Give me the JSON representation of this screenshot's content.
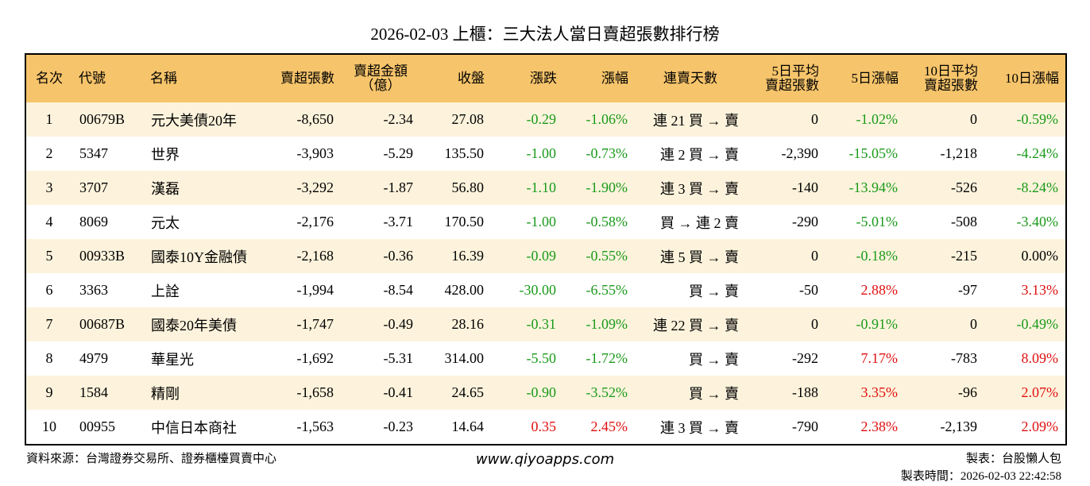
{
  "title": "2026-02-03 上櫃：三大法人當日賣超張數排行榜",
  "table": {
    "header": [
      "名次",
      "代號",
      "名稱",
      "賣超張數",
      "賣超金額\n（億）",
      "收盤",
      "漲跌",
      "漲幅",
      "連賣天數",
      "5日平均\n賣超張數",
      "5日漲幅",
      "10日平均\n賣超張數",
      "10日漲幅"
    ],
    "rows": [
      [
        "1",
        "00679B",
        "元大美債20年",
        "-8,650",
        "-2.34",
        "27.08",
        "-0.29",
        "-1.06%",
        "連 21 買 → 賣",
        "0",
        "-1.02%",
        "0",
        "-0.59%"
      ],
      [
        "2",
        "5347",
        "世界",
        "-3,903",
        "-5.29",
        "135.50",
        "-1.00",
        "-0.73%",
        "連 2 買 → 賣",
        "-2,390",
        "-15.05%",
        "-1,218",
        "-4.24%"
      ],
      [
        "3",
        "3707",
        "漢磊",
        "-3,292",
        "-1.87",
        "56.80",
        "-1.10",
        "-1.90%",
        "連 3 買 → 賣",
        "-140",
        "-13.94%",
        "-526",
        "-8.24%"
      ],
      [
        "4",
        "8069",
        "元太",
        "-2,176",
        "-3.71",
        "170.50",
        "-1.00",
        "-0.58%",
        "買 → 連 2 賣",
        "-290",
        "-5.01%",
        "-508",
        "-3.40%"
      ],
      [
        "5",
        "00933B",
        "國泰10Y金融債",
        "-2,168",
        "-0.36",
        "16.39",
        "-0.09",
        "-0.55%",
        "連 5 買 → 賣",
        "0",
        "-0.18%",
        "-215",
        "0.00%"
      ],
      [
        "6",
        "3363",
        "上詮",
        "-1,994",
        "-8.54",
        "428.00",
        "-30.00",
        "-6.55%",
        "買 → 賣",
        "-50",
        "2.88%",
        "-97",
        "3.13%"
      ],
      [
        "7",
        "00687B",
        "國泰20年美債",
        "-1,747",
        "-0.49",
        "28.16",
        "-0.31",
        "-1.09%",
        "連 22 買 → 賣",
        "0",
        "-0.91%",
        "0",
        "-0.49%"
      ],
      [
        "8",
        "4979",
        "華星光",
        "-1,692",
        "-5.31",
        "314.00",
        "-5.50",
        "-1.72%",
        "買 → 賣",
        "-292",
        "7.17%",
        "-783",
        "8.09%"
      ],
      [
        "9",
        "1584",
        "精剛",
        "-1,658",
        "-0.41",
        "24.65",
        "-0.90",
        "-3.52%",
        "買 → 賣",
        "-188",
        "3.35%",
        "-96",
        "2.07%"
      ],
      [
        "10",
        "00955",
        "中信日本商社",
        "-1,563",
        "-0.23",
        "14.64",
        "0.35",
        "2.45%",
        "連 3 買 → 賣",
        "-790",
        "2.38%",
        "-2,139",
        "2.09%"
      ]
    ]
  },
  "footer": {
    "source": "資料來源：台灣證券交易所、證券櫃檯買賣中心",
    "site": "www.qiyoapps.com",
    "maker": "製表：台股懶人包",
    "time": "製表時間：2026-02-03 22:42:58"
  }
}
